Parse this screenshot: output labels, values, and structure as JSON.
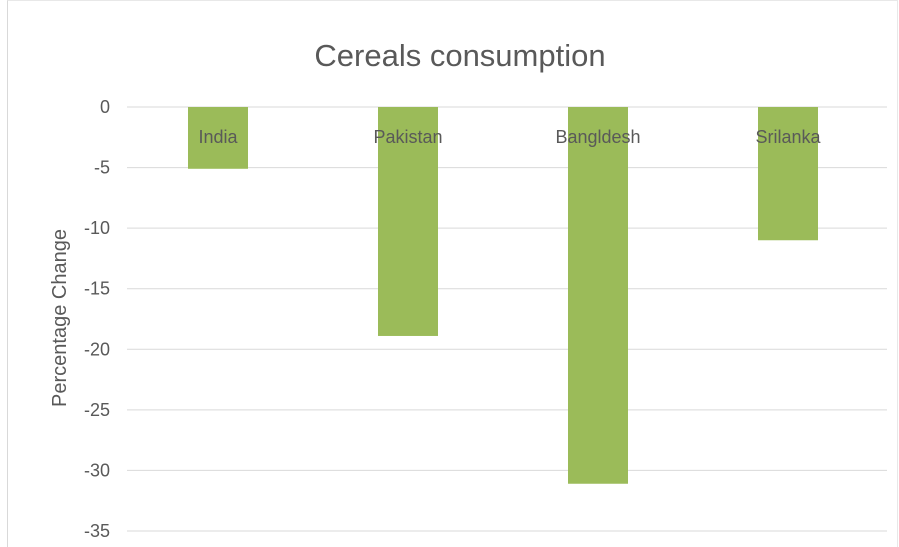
{
  "chart_data": {
    "type": "bar",
    "title": "Cereals consumption",
    "xlabel": "",
    "ylabel": "Percentage Change",
    "categories": [
      "India",
      "Pakistan",
      "Bangldesh",
      "Srilanka"
    ],
    "series": [
      {
        "values": [
          -5.1,
          -18.9,
          -31.1,
          -11
        ]
      }
    ],
    "ylim": [
      -35,
      0
    ],
    "yticks": [
      0,
      -5,
      -10,
      -15,
      -20,
      -25,
      -30,
      -35
    ],
    "grid": true,
    "legend": "none",
    "bar_color": "#9bbb59"
  }
}
